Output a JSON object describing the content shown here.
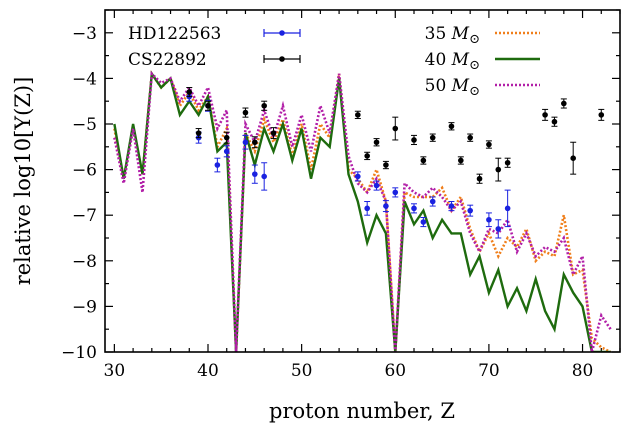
{
  "chart_data": {
    "type": "line",
    "xlabel": "proton number, Z",
    "ylabel": "relative log10[Y(Z)]",
    "xlim": [
      29,
      84
    ],
    "ylim": [
      -10,
      -2.5
    ],
    "x_ticks": [
      30,
      40,
      50,
      60,
      70,
      80
    ],
    "y_ticks": [
      -10,
      -9,
      -8,
      -7,
      -6,
      -5,
      -4,
      -3
    ],
    "legend_placement": "top",
    "series": [
      {
        "name": "35 M⊙",
        "kind": "line",
        "color": "#f07f1b",
        "dash": "dotted",
        "x": [
          30,
          31,
          32,
          33,
          34,
          35,
          36,
          37,
          38,
          39,
          40,
          41,
          42,
          43,
          44,
          45,
          46,
          47,
          48,
          49,
          50,
          51,
          52,
          53,
          54,
          55,
          56,
          57,
          58,
          59,
          60,
          61,
          62,
          63,
          64,
          65,
          66,
          67,
          68,
          69,
          70,
          71,
          72,
          73,
          74,
          75,
          76,
          77,
          78,
          79,
          80,
          81,
          82,
          83
        ],
        "y": [
          -5.1,
          -6.2,
          -5.1,
          -6.1,
          -3.9,
          -4.2,
          -4.0,
          -4.6,
          -4.3,
          -4.7,
          -4.4,
          -5.5,
          -5.1,
          -10,
          -5.2,
          -5.6,
          -4.9,
          -5.4,
          -4.9,
          -5.7,
          -5.0,
          -6.0,
          -5.0,
          -5.3,
          -3.9,
          -6.0,
          -6.2,
          -6.5,
          -6.0,
          -6.7,
          -10,
          -6.5,
          -6.6,
          -6.6,
          -6.6,
          -6.4,
          -6.9,
          -6.6,
          -7.3,
          -7.8,
          -7.4,
          -7.9,
          -7.5,
          -7.7,
          -7.3,
          -8.0,
          -7.8,
          -7.9,
          -7.0,
          -8.3,
          -8.2,
          -9.7,
          -9.9,
          -10
        ]
      },
      {
        "name": "40 M⊙",
        "kind": "line",
        "color": "#1e6b0e",
        "dash": "solid",
        "x": [
          30,
          31,
          32,
          33,
          34,
          35,
          36,
          37,
          38,
          39,
          40,
          41,
          42,
          43,
          44,
          45,
          46,
          47,
          48,
          49,
          50,
          51,
          52,
          53,
          54,
          55,
          56,
          57,
          58,
          59,
          60,
          61,
          62,
          63,
          64,
          65,
          66,
          67,
          68,
          69,
          70,
          71,
          72,
          73,
          74,
          75,
          76,
          77,
          78,
          79,
          80,
          81,
          82,
          83
        ],
        "y": [
          -5.0,
          -6.2,
          -5.0,
          -6.1,
          -3.9,
          -4.2,
          -4.0,
          -4.8,
          -4.5,
          -4.8,
          -4.4,
          -5.6,
          -5.4,
          -10,
          -5.2,
          -5.9,
          -5.1,
          -5.6,
          -5.0,
          -5.8,
          -5.1,
          -6.2,
          -5.3,
          -5.5,
          -4.0,
          -6.1,
          -6.7,
          -7.6,
          -7.0,
          -7.4,
          -10,
          -6.7,
          -7.2,
          -6.9,
          -7.5,
          -7.1,
          -7.4,
          -7.4,
          -8.3,
          -7.9,
          -8.7,
          -8.2,
          -9.0,
          -8.6,
          -9.1,
          -8.4,
          -9.1,
          -9.5,
          -8.3,
          -8.7,
          -9.0,
          -10,
          -10,
          -10
        ]
      },
      {
        "name": "50 M⊙",
        "kind": "line",
        "color": "#b21fa8",
        "dash": "dotted",
        "x": [
          30,
          31,
          32,
          33,
          34,
          35,
          36,
          37,
          38,
          39,
          40,
          41,
          42,
          43,
          44,
          45,
          46,
          47,
          48,
          49,
          50,
          51,
          52,
          53,
          54,
          55,
          56,
          57,
          58,
          59,
          60,
          61,
          62,
          63,
          64,
          65,
          66,
          67,
          68,
          69,
          70,
          71,
          72,
          73,
          74,
          75,
          76,
          77,
          78,
          79,
          80,
          81,
          82,
          83
        ],
        "y": [
          -5.3,
          -6.3,
          -5.1,
          -6.5,
          -3.9,
          -4.1,
          -4.0,
          -4.5,
          -4.2,
          -4.6,
          -4.2,
          -5.1,
          -4.7,
          -10,
          -5.0,
          -5.4,
          -4.7,
          -5.3,
          -4.6,
          -5.5,
          -4.8,
          -5.6,
          -4.6,
          -5.2,
          -3.9,
          -5.7,
          -6.3,
          -6.5,
          -6.2,
          -6.7,
          -10,
          -6.3,
          -6.5,
          -6.6,
          -6.4,
          -6.6,
          -6.9,
          -6.7,
          -7.4,
          -7.8,
          -7.3,
          -7.4,
          -7.1,
          -7.8,
          -7.4,
          -7.9,
          -7.7,
          -7.8,
          -7.5,
          -8.3,
          -7.9,
          -10,
          -9.2,
          -9.5
        ]
      },
      {
        "name": "HD122563",
        "kind": "points",
        "color": "#1a22e0",
        "points": [
          {
            "x": 38,
            "y": -4.4,
            "err": 0.1
          },
          {
            "x": 39,
            "y": -5.3,
            "err": 0.12
          },
          {
            "x": 40,
            "y": -4.6,
            "err": 0.12
          },
          {
            "x": 41,
            "y": -5.9,
            "err": 0.15
          },
          {
            "x": 42,
            "y": -5.6,
            "err": 0.12
          },
          {
            "x": 44,
            "y": -5.4,
            "err": 0.15
          },
          {
            "x": 45,
            "y": -6.1,
            "err": 0.2
          },
          {
            "x": 46,
            "y": -6.15,
            "err": 0.3
          },
          {
            "x": 56,
            "y": -6.15,
            "err": 0.1
          },
          {
            "x": 57,
            "y": -6.85,
            "err": 0.15
          },
          {
            "x": 58,
            "y": -6.35,
            "err": 0.1
          },
          {
            "x": 59,
            "y": -6.8,
            "err": 0.12
          },
          {
            "x": 60,
            "y": -6.5,
            "err": 0.1
          },
          {
            "x": 62,
            "y": -6.85,
            "err": 0.1
          },
          {
            "x": 63,
            "y": -7.15,
            "err": 0.1
          },
          {
            "x": 64,
            "y": -6.7,
            "err": 0.1
          },
          {
            "x": 66,
            "y": -6.8,
            "err": 0.1
          },
          {
            "x": 68,
            "y": -6.9,
            "err": 0.12
          },
          {
            "x": 70,
            "y": -7.1,
            "err": 0.15
          },
          {
            "x": 71,
            "y": -7.3,
            "err": 0.2
          },
          {
            "x": 72,
            "y": -6.85,
            "err": 0.4
          }
        ]
      },
      {
        "name": "CS22892",
        "kind": "points",
        "color": "#000000",
        "points": [
          {
            "x": 38,
            "y": -4.3,
            "err": 0.1
          },
          {
            "x": 39,
            "y": -5.2,
            "err": 0.1
          },
          {
            "x": 40,
            "y": -4.6,
            "err": 0.1
          },
          {
            "x": 42,
            "y": -5.3,
            "err": 0.12
          },
          {
            "x": 44,
            "y": -4.75,
            "err": 0.1
          },
          {
            "x": 45,
            "y": -5.4,
            "err": 0.12
          },
          {
            "x": 46,
            "y": -4.6,
            "err": 0.1
          },
          {
            "x": 47,
            "y": -5.2,
            "err": 0.12
          },
          {
            "x": 56,
            "y": -4.8,
            "err": 0.08
          },
          {
            "x": 57,
            "y": -5.7,
            "err": 0.08
          },
          {
            "x": 58,
            "y": -5.4,
            "err": 0.08
          },
          {
            "x": 59,
            "y": -5.9,
            "err": 0.08
          },
          {
            "x": 60,
            "y": -5.1,
            "err": 0.25
          },
          {
            "x": 62,
            "y": -5.35,
            "err": 0.1
          },
          {
            "x": 63,
            "y": -5.8,
            "err": 0.08
          },
          {
            "x": 64,
            "y": -5.3,
            "err": 0.08
          },
          {
            "x": 66,
            "y": -5.05,
            "err": 0.08
          },
          {
            "x": 67,
            "y": -5.8,
            "err": 0.08
          },
          {
            "x": 68,
            "y": -5.3,
            "err": 0.08
          },
          {
            "x": 69,
            "y": -6.2,
            "err": 0.1
          },
          {
            "x": 70,
            "y": -5.45,
            "err": 0.08
          },
          {
            "x": 71,
            "y": -6.0,
            "err": 0.25
          },
          {
            "x": 72,
            "y": -5.85,
            "err": 0.1
          },
          {
            "x": 76,
            "y": -4.8,
            "err": 0.12
          },
          {
            "x": 77,
            "y": -4.95,
            "err": 0.1
          },
          {
            "x": 78,
            "y": -4.55,
            "err": 0.1
          },
          {
            "x": 79,
            "y": -5.75,
            "err": 0.35
          },
          {
            "x": 82,
            "y": -4.8,
            "err": 0.12
          }
        ]
      }
    ]
  }
}
